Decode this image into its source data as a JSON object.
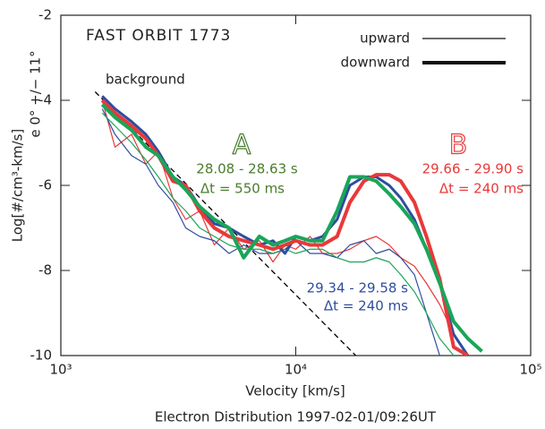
{
  "chart_data": {
    "type": "line",
    "title": "FAST ORBIT 1773",
    "xlabel": "Velocity [km/s]",
    "ylabel": "Log[#/cm³-km/s]",
    "side_label": "e 0° +/− 11°",
    "footer": "Electron Distribution 1997-02-01/09:26UT",
    "xscale": "log",
    "xlim": [
      1000,
      100000
    ],
    "ylim": [
      -10,
      -2
    ],
    "xticks": [
      {
        "value": 1000,
        "label": "10³"
      },
      {
        "value": 10000,
        "label": "10⁴"
      },
      {
        "value": 100000,
        "label": "10⁵"
      }
    ],
    "yticks": [
      -10,
      -8,
      -6,
      -4,
      -2
    ],
    "legend": [
      {
        "label": "upward",
        "width": 1.2
      },
      {
        "label": "downward",
        "width": 4
      }
    ],
    "annotations": {
      "background": "background",
      "a_letter": "A",
      "a_time": "28.08 - 28.63 s",
      "a_dt": "Δt = 550 ms",
      "b_letter": "B",
      "b_time": "29.66 - 29.90 s",
      "b_dt": "Δt = 240 ms",
      "c_time": "29.34 - 29.58 s",
      "c_dt": "Δt = 240 ms"
    },
    "x": [
      1500,
      1700,
      2000,
      2300,
      2600,
      3000,
      3400,
      3900,
      4500,
      5200,
      6000,
      7000,
      8000,
      9000,
      10000,
      11500,
      13000,
      15000,
      17000,
      19500,
      22000,
      25000,
      28000,
      32000,
      36000,
      41000,
      47000,
      54000,
      62000
    ],
    "series": [
      {
        "color": "#e8393a",
        "width": 1.2,
        "values": [
          -4.0,
          -5.1,
          -4.8,
          -5.5,
          -5.2,
          -6.3,
          -6.8,
          -6.6,
          -7.4,
          -7.0,
          -7.5,
          -7.3,
          -7.8,
          -7.4,
          -7.5,
          -7.2,
          -7.6,
          -7.6,
          -7.5,
          -7.3,
          -7.2,
          -7.4,
          -7.7,
          -7.9,
          -8.3,
          -8.8,
          -9.5,
          -10,
          null
        ]
      },
      {
        "color": "#2e4d9e",
        "width": 1.2,
        "values": [
          -4.2,
          -4.8,
          -5.3,
          -5.5,
          -6.0,
          -6.4,
          -7.0,
          -7.2,
          -7.3,
          -7.6,
          -7.4,
          -7.6,
          -7.6,
          -7.5,
          -7.3,
          -7.6,
          -7.6,
          -7.7,
          -7.4,
          -7.3,
          -7.6,
          -7.5,
          -7.7,
          -8.1,
          -9.0,
          -10,
          null,
          null,
          null
        ]
      },
      {
        "color": "#1aa55a",
        "width": 1.2,
        "values": [
          -4.3,
          -4.6,
          -5.0,
          -5.4,
          -5.8,
          -6.3,
          -6.6,
          -7.0,
          -7.2,
          -7.4,
          -7.5,
          -7.5,
          -7.6,
          -7.5,
          -7.6,
          -7.5,
          -7.5,
          -7.7,
          -7.8,
          -7.8,
          -7.7,
          -7.8,
          -8.1,
          -8.5,
          -9.0,
          -9.6,
          -10,
          null,
          null
        ]
      },
      {
        "color": "#2e4d9e",
        "width": 3,
        "values": [
          -3.9,
          -4.2,
          -4.5,
          -4.8,
          -5.2,
          -5.8,
          -6.0,
          -6.5,
          -6.9,
          -7.0,
          -7.2,
          -7.4,
          -7.3,
          -7.6,
          -7.2,
          -7.3,
          -7.2,
          -6.8,
          -6.0,
          -5.8,
          -5.8,
          -6.0,
          -6.3,
          -6.8,
          -7.5,
          -8.3,
          -9.5,
          -10,
          null
        ]
      },
      {
        "color": "#e8393a",
        "width": 4,
        "values": [
          -4.0,
          -4.3,
          -4.6,
          -4.9,
          -5.3,
          -5.9,
          -6.0,
          -6.6,
          -7.0,
          -7.2,
          -7.3,
          -7.4,
          -7.5,
          -7.4,
          -7.3,
          -7.4,
          -7.4,
          -7.2,
          -6.4,
          -5.9,
          -5.75,
          -5.75,
          -5.9,
          -6.4,
          -7.2,
          -8.2,
          -9.8,
          -10,
          null
        ]
      },
      {
        "color": "#1aa55a",
        "width": 4,
        "values": [
          -4.1,
          -4.4,
          -4.7,
          -5.1,
          -5.3,
          -5.8,
          -6.1,
          -6.5,
          -6.8,
          -7.0,
          -7.7,
          -7.2,
          -7.4,
          -7.3,
          -7.2,
          -7.3,
          -7.3,
          -6.6,
          -5.8,
          -5.8,
          -5.9,
          -6.2,
          -6.5,
          -6.9,
          -7.5,
          -8.3,
          -9.2,
          -9.6,
          -9.9
        ]
      }
    ],
    "background_fit": {
      "color": "#000000",
      "x": [
        1400,
        18000
      ],
      "values": [
        -3.8,
        -10
      ]
    }
  }
}
